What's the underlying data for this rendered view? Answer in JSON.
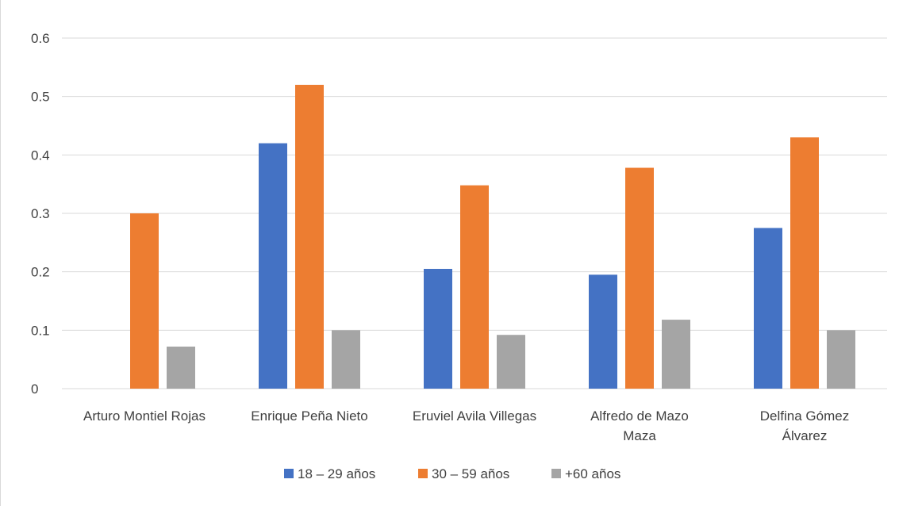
{
  "chart_data": {
    "type": "bar",
    "title": "",
    "xlabel": "",
    "ylabel": "",
    "ylim": [
      0,
      0.6
    ],
    "yticks": [
      "0",
      "0.1",
      "0.2",
      "0.3",
      "0.4",
      "0.5",
      "0.6"
    ],
    "grid": true,
    "legend_position": "bottom",
    "categories": [
      [
        "Arturo Montiel Rojas"
      ],
      [
        "Enrique Peña Nieto"
      ],
      [
        "Eruviel Avila Villegas"
      ],
      [
        "Alfredo de Mazo",
        "Maza"
      ],
      [
        "Delfina Gómez",
        "Álvarez"
      ]
    ],
    "series": [
      {
        "name": "18 – 29 años",
        "color": "#4472c4",
        "values": [
          null,
          0.42,
          0.205,
          0.195,
          0.275
        ]
      },
      {
        "name": "30 – 59 años",
        "color": "#ed7d31",
        "values": [
          0.3,
          0.52,
          0.348,
          0.378,
          0.43
        ]
      },
      {
        "name": "+60 años",
        "color": "#a5a5a5",
        "values": [
          0.072,
          0.1,
          0.092,
          0.118,
          0.1
        ]
      }
    ]
  }
}
